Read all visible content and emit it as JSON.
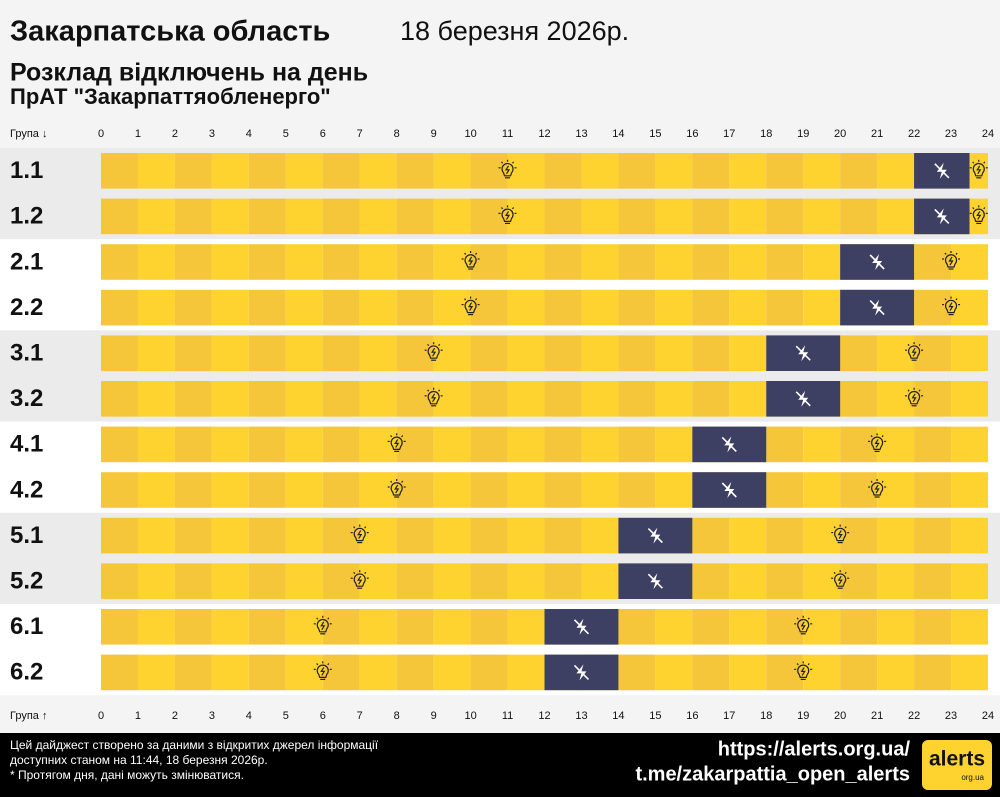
{
  "chart_data": {
    "type": "schedule",
    "title": "Закарпатська область",
    "date": "18 березня 2026р.",
    "subtitle": "Розклад відключень на день",
    "provider": "ПрАТ \"Закарпаттяобленерго\"",
    "y_label_top": "Група ↓",
    "y_label_bottom": "Група ↑",
    "categories": [
      "1.1",
      "1.2",
      "2.1",
      "2.2",
      "3.1",
      "3.2",
      "4.1",
      "4.2",
      "5.1",
      "5.2",
      "6.1",
      "6.2"
    ],
    "outages": [
      [
        22,
        23.5
      ],
      [
        22,
        23.5
      ],
      [
        20,
        22
      ],
      [
        20,
        22
      ],
      [
        18,
        20
      ],
      [
        18,
        20
      ],
      [
        16,
        18
      ],
      [
        16,
        18
      ],
      [
        14,
        16
      ],
      [
        14,
        16
      ],
      [
        12,
        14
      ],
      [
        12,
        14
      ]
    ],
    "xlim": [
      0,
      24
    ],
    "xticks": [
      0,
      1,
      2,
      3,
      4,
      5,
      6,
      7,
      8,
      9,
      10,
      11,
      12,
      13,
      14,
      15,
      16,
      17,
      18,
      19,
      20,
      21,
      22,
      23,
      24
    ],
    "colors": {
      "on": "#fed330",
      "on_alt": "#f5c63a",
      "off": "#3e4063"
    },
    "footer": {
      "lines": [
        "Цей дайджест створено за даними з відкритих джерел інформації",
        "доступних станом на 11:44, 18 березня 2026р.",
        "* Протягом дня, дані можуть змінюватися."
      ],
      "links": [
        "https://alerts.org.ua/",
        "t.me/zakarpattia_open_alerts"
      ],
      "logo": "alerts",
      "logo_sub": "org.ua"
    }
  }
}
